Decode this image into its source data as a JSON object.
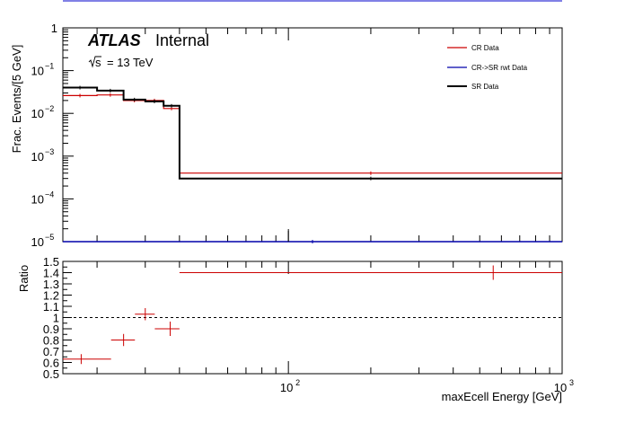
{
  "chart_data": [
    {
      "type": "line",
      "subtype": "step-histogram",
      "ylabel": "Frac. Events/[5 GeV]",
      "xlabel": "",
      "xscale": "log",
      "yscale": "log",
      "xlim": [
        15,
        1000
      ],
      "ylim": [
        1e-05,
        1
      ],
      "y_tick_labels": [
        "10",
        "10",
        "10",
        "10",
        "10",
        "1"
      ],
      "y_tick_exponents": [
        "−5",
        "−4",
        "−3",
        "−2",
        "−1",
        ""
      ],
      "annotations": {
        "experiment": "ATLAS",
        "status": "Internal",
        "energy_prefix": "s",
        "energy_value": "= 13 TeV"
      },
      "legend": {
        "position": "top-right"
      },
      "series": [
        {
          "name": "CR Data",
          "color": "#cc0000",
          "bins": [
            15,
            20,
            25,
            30,
            35,
            40,
            1000
          ],
          "values": [
            0.026,
            0.027,
            0.02,
            0.02,
            0.013,
            0.0004
          ]
        },
        {
          "name": "CR->SR rwt Data",
          "color": "#0000aa",
          "bins": [
            15,
            1000
          ],
          "values": [
            1e-05
          ]
        },
        {
          "name": "SR Data",
          "color": "#000000",
          "bins": [
            15,
            20,
            25,
            30,
            35,
            40,
            1000
          ],
          "values": [
            0.04,
            0.034,
            0.021,
            0.019,
            0.015,
            0.0003
          ]
        }
      ]
    },
    {
      "type": "scatter",
      "ylabel": "Ratio",
      "xlabel": "maxEcell Energy [GeV]",
      "xscale": "log",
      "xlim": [
        15,
        1000
      ],
      "ylim": [
        0.5,
        1.5
      ],
      "yticks": [
        "0.5",
        "0.6",
        "0.7",
        "0.8",
        "0.9",
        "1",
        "1.1",
        "1.2",
        "1.3",
        "1.4",
        "1.5"
      ],
      "x_tick_labels": [
        {
          "value": 100,
          "base": "10",
          "exp": "2"
        },
        {
          "value": 1000,
          "base": "10",
          "exp": "3"
        }
      ],
      "reference_line": 1,
      "color": "#cc0000",
      "points": [
        {
          "x": 17.5,
          "xlo": 15,
          "xhi": 22.5,
          "y": 0.63,
          "yerr": 0.02
        },
        {
          "x": 25,
          "xlo": 22.5,
          "xhi": 27.5,
          "y": 0.8,
          "yerr": 0.03
        },
        {
          "x": 30,
          "xlo": 27.5,
          "xhi": 32.5,
          "y": 1.03,
          "yerr": 0.03
        },
        {
          "x": 37,
          "xlo": 32.5,
          "xhi": 40,
          "y": 0.9,
          "yerr": 0.04
        },
        {
          "x": 560,
          "xlo": 40,
          "xhi": 1000,
          "y": 1.4,
          "yerr": 0.04
        }
      ]
    }
  ]
}
